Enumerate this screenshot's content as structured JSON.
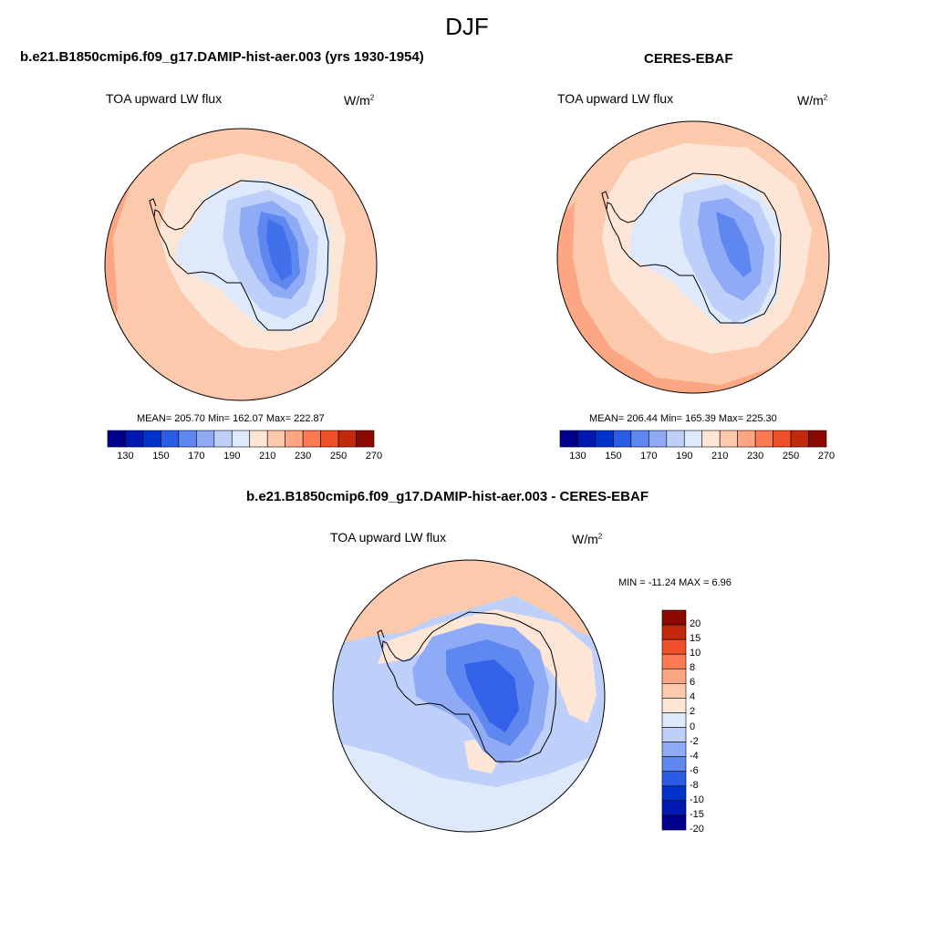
{
  "figure": {
    "season": "DJF"
  },
  "colors": {
    "hbar": [
      "#00008c",
      "#0019b2",
      "#0033cc",
      "#2b5ce6",
      "#5e87f0",
      "#8fabf5",
      "#bed0fa",
      "#dfe9fc",
      "#fde6d6",
      "#fcc9ad",
      "#fca684",
      "#fb7a53",
      "#f0502a",
      "#c22a0c",
      "#8c0a00"
    ],
    "vbar": [
      "#00008c",
      "#0019b2",
      "#0033cc",
      "#2b5ce6",
      "#5e87f0",
      "#8fabf5",
      "#bed0fa",
      "#dfe9fc",
      "#fde6d6",
      "#fcc9ad",
      "#fca684",
      "#fb7a53",
      "#f0502a",
      "#c22a0c",
      "#8c0a00"
    ],
    "ocean_model": "#fcc9ad",
    "ocean_obs": "#fcc9ad",
    "diff_base": "#bed0fa"
  },
  "panels": [
    {
      "title": "b.e21.B1850cmip6.f09_g17.DAMIP-hist-aer.003 (yrs 1930-1954)",
      "variable": "TOA upward LW flux",
      "units": "W/m",
      "units_sup": "2",
      "stats": "MEAN= 205.70  Min= 162.07  Max= 222.87",
      "colorbar_ticks": [
        "130",
        "150",
        "170",
        "190",
        "210",
        "230",
        "250",
        "270"
      ]
    },
    {
      "title": "CERES-EBAF",
      "variable": "TOA upward LW flux",
      "units": "W/m",
      "units_sup": "2",
      "stats": "MEAN= 206.44  Min= 165.39  Max= 225.30",
      "colorbar_ticks": [
        "130",
        "150",
        "170",
        "190",
        "210",
        "230",
        "250",
        "270"
      ]
    }
  ],
  "difference": {
    "title": "b.e21.B1850cmip6.f09_g17.DAMIP-hist-aer.003 - CERES-EBAF",
    "variable": "TOA upward LW flux",
    "units": "W/m",
    "units_sup": "2",
    "stats": "MIN = -11.24 MAX =   6.96",
    "colorbar_ticks": [
      "20",
      "15",
      "10",
      "8",
      "6",
      "4",
      "2",
      "0",
      "-2",
      "-4",
      "-6",
      "-8",
      "-10",
      "-15",
      "-20"
    ]
  }
}
